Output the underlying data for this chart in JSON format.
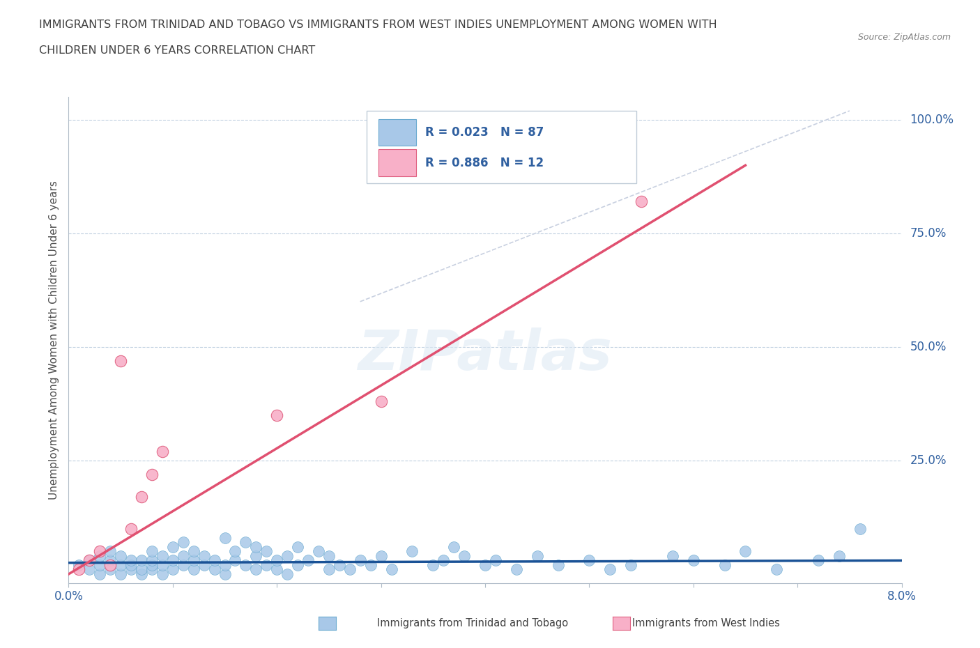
{
  "title_line1": "IMMIGRANTS FROM TRINIDAD AND TOBAGO VS IMMIGRANTS FROM WEST INDIES UNEMPLOYMENT AMONG WOMEN WITH",
  "title_line2": "CHILDREN UNDER 6 YEARS CORRELATION CHART",
  "source_text": "Source: ZipAtlas.com",
  "ylabel": "Unemployment Among Women with Children Under 6 years",
  "xlim": [
    0.0,
    0.08
  ],
  "ylim": [
    -0.02,
    1.05
  ],
  "xtick_positions": [
    0.0,
    0.01,
    0.02,
    0.03,
    0.04,
    0.05,
    0.06,
    0.07,
    0.08
  ],
  "xtick_labels": [
    "0.0%",
    "",
    "",
    "",
    "",
    "",
    "",
    "",
    "8.0%"
  ],
  "ytick_positions": [
    0.0,
    0.25,
    0.5,
    0.75,
    1.0
  ],
  "ytick_labels": [
    "",
    "25.0%",
    "50.0%",
    "75.0%",
    "100.0%"
  ],
  "watermark": "ZIPatlas",
  "blue_color": "#a8c8e8",
  "blue_edge_color": "#6aaad0",
  "blue_line_color": "#1a5296",
  "pink_color": "#f8b0c8",
  "pink_edge_color": "#e06080",
  "pink_line_color": "#e05070",
  "grid_color": "#c0d0e0",
  "diag_color": "#c8d0e0",
  "background_color": "#ffffff",
  "legend_text_color": "#3060a0",
  "axis_label_color": "#3060a0",
  "title_color": "#404040",
  "source_color": "#808080",
  "ylabel_color": "#505050",
  "blue_scatter_x": [
    0.001,
    0.002,
    0.002,
    0.003,
    0.003,
    0.003,
    0.004,
    0.004,
    0.004,
    0.005,
    0.005,
    0.005,
    0.006,
    0.006,
    0.006,
    0.007,
    0.007,
    0.007,
    0.008,
    0.008,
    0.008,
    0.008,
    0.009,
    0.009,
    0.009,
    0.01,
    0.01,
    0.01,
    0.011,
    0.011,
    0.011,
    0.012,
    0.012,
    0.012,
    0.013,
    0.013,
    0.014,
    0.014,
    0.015,
    0.015,
    0.015,
    0.016,
    0.016,
    0.017,
    0.017,
    0.018,
    0.018,
    0.018,
    0.019,
    0.019,
    0.02,
    0.02,
    0.021,
    0.021,
    0.022,
    0.022,
    0.023,
    0.024,
    0.025,
    0.025,
    0.026,
    0.027,
    0.028,
    0.029,
    0.03,
    0.031,
    0.033,
    0.035,
    0.036,
    0.037,
    0.038,
    0.04,
    0.041,
    0.043,
    0.045,
    0.047,
    0.05,
    0.052,
    0.054,
    0.058,
    0.06,
    0.063,
    0.065,
    0.068,
    0.072,
    0.074,
    0.076
  ],
  "blue_scatter_y": [
    0.02,
    0.01,
    0.03,
    0.0,
    0.02,
    0.04,
    0.01,
    0.03,
    0.05,
    0.0,
    0.02,
    0.04,
    0.01,
    0.02,
    0.03,
    0.0,
    0.01,
    0.03,
    0.01,
    0.02,
    0.03,
    0.05,
    0.0,
    0.02,
    0.04,
    0.01,
    0.03,
    0.06,
    0.02,
    0.04,
    0.07,
    0.01,
    0.03,
    0.05,
    0.02,
    0.04,
    0.01,
    0.03,
    0.0,
    0.02,
    0.08,
    0.03,
    0.05,
    0.02,
    0.07,
    0.01,
    0.04,
    0.06,
    0.02,
    0.05,
    0.01,
    0.03,
    0.0,
    0.04,
    0.02,
    0.06,
    0.03,
    0.05,
    0.01,
    0.04,
    0.02,
    0.01,
    0.03,
    0.02,
    0.04,
    0.01,
    0.05,
    0.02,
    0.03,
    0.06,
    0.04,
    0.02,
    0.03,
    0.01,
    0.04,
    0.02,
    0.03,
    0.01,
    0.02,
    0.04,
    0.03,
    0.02,
    0.05,
    0.01,
    0.03,
    0.04,
    0.1
  ],
  "pink_scatter_x": [
    0.001,
    0.002,
    0.003,
    0.004,
    0.005,
    0.006,
    0.007,
    0.008,
    0.009,
    0.02,
    0.03,
    0.055
  ],
  "pink_scatter_y": [
    0.01,
    0.03,
    0.05,
    0.02,
    0.47,
    0.1,
    0.17,
    0.22,
    0.27,
    0.35,
    0.38,
    0.82
  ],
  "blue_line_x": [
    0.0,
    0.08
  ],
  "blue_line_y": [
    0.025,
    0.03
  ],
  "pink_line_x": [
    0.0,
    0.065
  ],
  "pink_line_y": [
    0.0,
    0.9
  ],
  "diag_line_x": [
    0.028,
    0.075
  ],
  "diag_line_y": [
    0.6,
    1.02
  ]
}
